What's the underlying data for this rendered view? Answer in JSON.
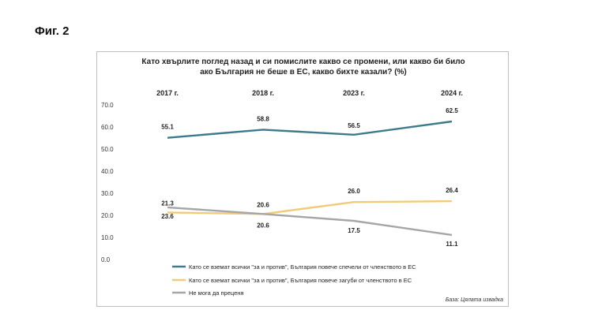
{
  "figure_label": "Фиг. 2",
  "source": "База: Цялата извадка",
  "chart_data": {
    "type": "line",
    "title_lines": [
      "Като хвърлите поглед назад и си помислите какво се промени, или какво би било",
      "ако България не беше в ЕС, какво бихте казали? (%)"
    ],
    "categories": [
      "2017 г.",
      "2018 г.",
      "2023 г.",
      "2024 г."
    ],
    "ylim": [
      0,
      70
    ],
    "yticks": [
      "0.0",
      "10.0",
      "20.0",
      "30.0",
      "40.0",
      "50.0",
      "60.0",
      "70.0"
    ],
    "grid": false,
    "legend_position": "bottom",
    "series": [
      {
        "name": "Като се вземат всички \"за и против\", България повече спечели от членството в ЕС",
        "values": [
          55.1,
          58.8,
          56.5,
          62.5
        ],
        "labels": [
          "55.1",
          "58.8",
          "56.5",
          "62.5"
        ],
        "color": "#3d7a8a"
      },
      {
        "name": "Като се вземат всички \"за и против\", България повече загуби от членството в ЕС",
        "values": [
          21.3,
          20.6,
          26.0,
          26.4
        ],
        "labels": [
          "21.3",
          "20.6",
          "26.0",
          "26.4"
        ],
        "color": "#f0cb7a"
      },
      {
        "name": "Не мога да преценя",
        "values": [
          23.6,
          20.6,
          17.5,
          11.1
        ],
        "labels": [
          "23.6",
          "20.6",
          "17.5",
          "11.1"
        ],
        "color": "#a6a6a6"
      }
    ]
  }
}
